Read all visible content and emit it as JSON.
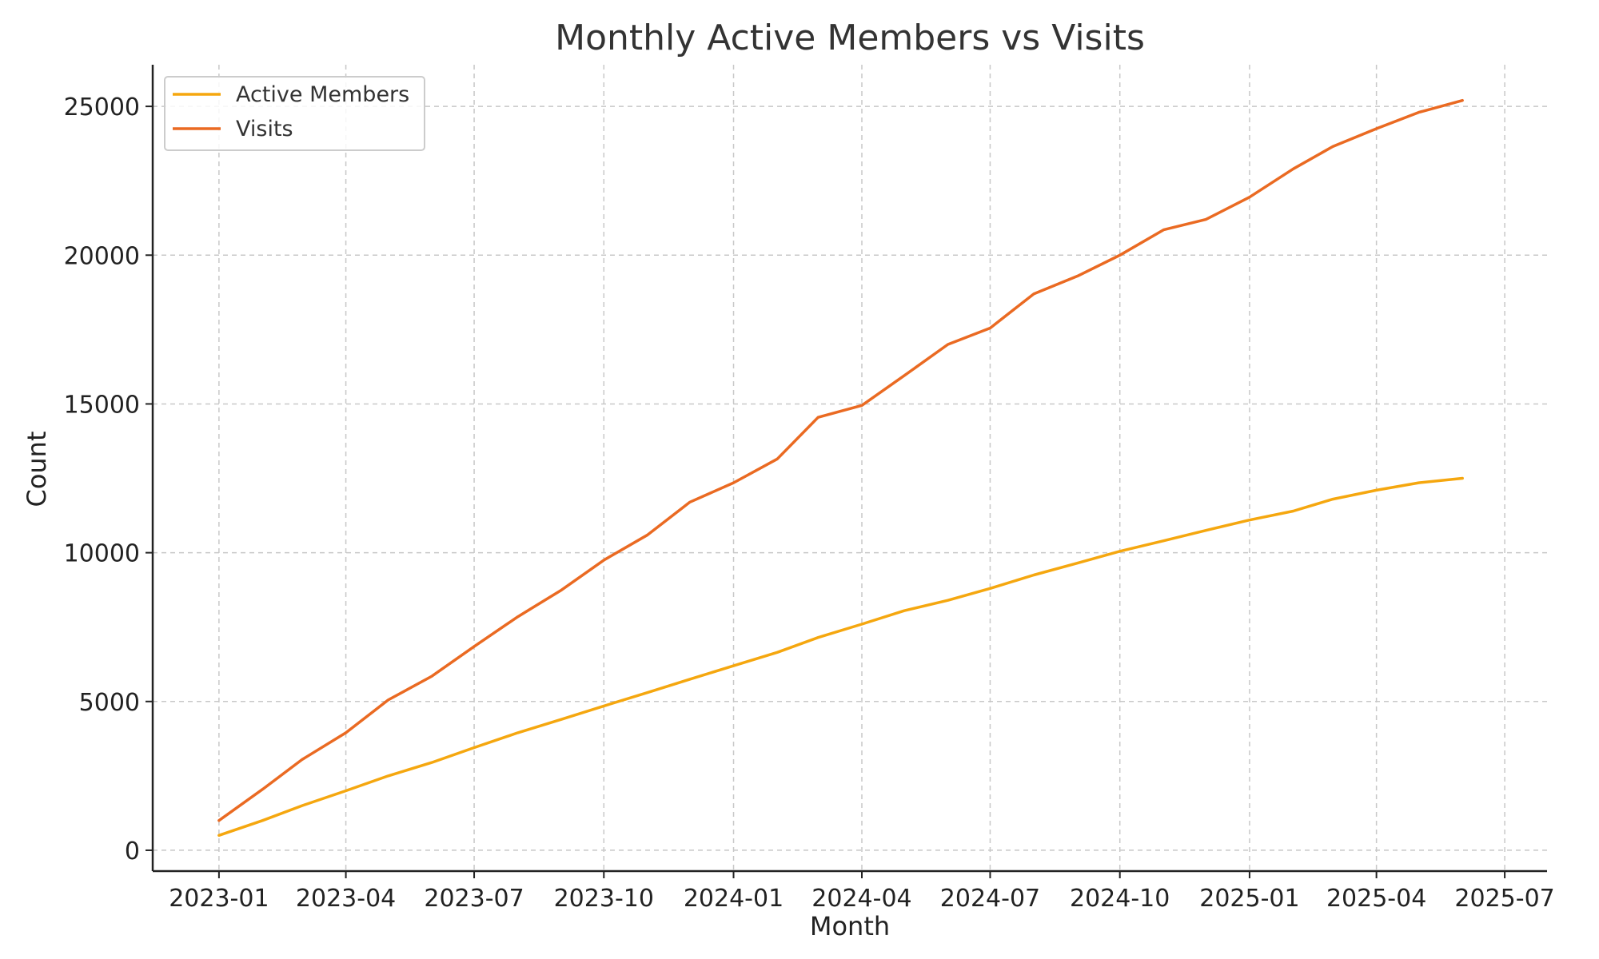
{
  "chart_data": {
    "type": "line",
    "title": "Monthly Active Members vs Visits",
    "xlabel": "Month",
    "ylabel": "Count",
    "x_ticks": [
      "2023-01",
      "2023-04",
      "2023-07",
      "2023-10",
      "2024-01",
      "2024-04",
      "2024-07",
      "2024-10",
      "2025-01",
      "2025-04",
      "2025-07"
    ],
    "y_ticks": [
      0,
      5000,
      10000,
      15000,
      20000,
      25000
    ],
    "xlim": [
      "2022-11-15",
      "2025-07-31"
    ],
    "ylim": [
      -700,
      26400
    ],
    "grid": true,
    "legend_position": "top-left",
    "x": [
      "2023-01",
      "2023-02",
      "2023-03",
      "2023-04",
      "2023-05",
      "2023-06",
      "2023-07",
      "2023-08",
      "2023-09",
      "2023-10",
      "2023-11",
      "2023-12",
      "2024-01",
      "2024-02",
      "2024-03",
      "2024-04",
      "2024-05",
      "2024-06",
      "2024-07",
      "2024-08",
      "2024-09",
      "2024-10",
      "2024-11",
      "2024-12",
      "2025-01",
      "2025-02",
      "2025-03",
      "2025-04",
      "2025-05",
      "2025-06"
    ],
    "series": [
      {
        "name": "Active Members",
        "color": "#f5a70f",
        "values": [
          500,
          1000,
          1500,
          2000,
          2500,
          2950,
          3450,
          3950,
          4400,
          4850,
          5300,
          5750,
          6200,
          6650,
          7150,
          7600,
          8050,
          8400,
          8800,
          9250,
          9650,
          10050,
          10400,
          10750,
          11100,
          11400,
          11800,
          12100,
          12350,
          12500
        ]
      },
      {
        "name": "Visits",
        "color": "#ea6a22",
        "values": [
          1000,
          2050,
          3050,
          3950,
          5050,
          5850,
          6850,
          7850,
          8750,
          9750,
          10600,
          11700,
          12350,
          13150,
          14550,
          14950,
          15950,
          17000,
          17550,
          18700,
          19300,
          20000,
          20850,
          21200,
          21950,
          22900,
          23650,
          24250,
          24800,
          25200
        ]
      }
    ]
  }
}
